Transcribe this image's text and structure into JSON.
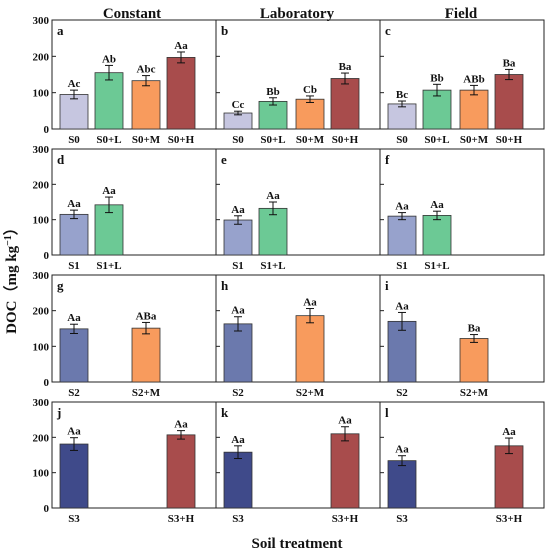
{
  "figure": {
    "ylabel": "DOC（mg kg",
    "ylabel_sup": "−1",
    "ylabel_end": "）",
    "xlabel": "Soil treatment",
    "columns": [
      "Constant",
      "Laboratory",
      "Field"
    ]
  },
  "colors": {
    "S0": "#c6c6e0",
    "S1": "#97a2cc",
    "S2": "#6b79ad",
    "S3": "#3f4a8a",
    "L": "#6cc995",
    "M": "#f89b5d",
    "H": "#a84c4c",
    "axis": "#222222"
  },
  "chart_data": [
    {
      "type": "bar",
      "panel": "a",
      "ylim": [
        0,
        300
      ],
      "yticks": [
        0,
        100,
        200,
        300
      ],
      "categories": [
        "S0",
        "S0+L",
        "S0+M",
        "S0+H"
      ],
      "colors": [
        "S0",
        "L",
        "M",
        "H"
      ],
      "values": [
        95,
        155,
        133,
        197
      ],
      "errors": [
        12,
        20,
        14,
        15
      ],
      "labels": [
        "Ac",
        "Ab",
        "Abc",
        "Aa"
      ]
    },
    {
      "type": "bar",
      "panel": "b",
      "ylim": [
        0,
        300
      ],
      "yticks": [
        0,
        100,
        200,
        300
      ],
      "categories": [
        "S0",
        "S0+L",
        "S0+M",
        "S0+H"
      ],
      "colors": [
        "S0",
        "L",
        "M",
        "H"
      ],
      "values": [
        44,
        76,
        82,
        139
      ],
      "errors": [
        5,
        10,
        9,
        15
      ],
      "labels": [
        "Cc",
        "Bb",
        "Cb",
        "Ba"
      ]
    },
    {
      "type": "bar",
      "panel": "c",
      "ylim": [
        0,
        300
      ],
      "yticks": [
        0,
        100,
        200,
        300
      ],
      "categories": [
        "S0",
        "S0+L",
        "S0+M",
        "S0+H"
      ],
      "colors": [
        "S0",
        "L",
        "M",
        "H"
      ],
      "values": [
        69,
        107,
        107,
        150
      ],
      "errors": [
        8,
        16,
        13,
        14
      ],
      "labels": [
        "Bc",
        "Bb",
        "ABb",
        "Ba"
      ]
    },
    {
      "type": "bar",
      "panel": "d",
      "ylim": [
        0,
        300
      ],
      "yticks": [
        0,
        100,
        200,
        300
      ],
      "categories": [
        "S1",
        "S1+L",
        "",
        ""
      ],
      "colors": [
        "S1",
        "L",
        "",
        ""
      ],
      "values": [
        115,
        142,
        null,
        null
      ],
      "errors": [
        12,
        22,
        null,
        null
      ],
      "labels": [
        "Aa",
        "Aa",
        "",
        ""
      ]
    },
    {
      "type": "bar",
      "panel": "e",
      "ylim": [
        0,
        300
      ],
      "yticks": [
        0,
        100,
        200,
        300
      ],
      "categories": [
        "S1",
        "S1+L",
        "",
        ""
      ],
      "colors": [
        "S1",
        "L",
        "",
        ""
      ],
      "values": [
        99,
        132,
        null,
        null
      ],
      "errors": [
        12,
        18,
        null,
        null
      ],
      "labels": [
        "Aa",
        "Aa",
        "",
        ""
      ]
    },
    {
      "type": "bar",
      "panel": "f",
      "ylim": [
        0,
        300
      ],
      "yticks": [
        0,
        100,
        200,
        300
      ],
      "categories": [
        "S1",
        "S1+L",
        "",
        ""
      ],
      "colors": [
        "S1",
        "L",
        "",
        ""
      ],
      "values": [
        110,
        112,
        null,
        null
      ],
      "errors": [
        10,
        12,
        null,
        null
      ],
      "labels": [
        "Aa",
        "Aa",
        "",
        ""
      ]
    },
    {
      "type": "bar",
      "panel": "g",
      "ylim": [
        0,
        300
      ],
      "yticks": [
        0,
        100,
        200,
        300
      ],
      "categories": [
        "S2",
        "",
        "S2+M",
        ""
      ],
      "colors": [
        "S2",
        "",
        "M",
        ""
      ],
      "values": [
        149,
        null,
        151,
        null
      ],
      "errors": [
        13,
        null,
        16,
        null
      ],
      "labels": [
        "Aa",
        "",
        "ABa",
        ""
      ]
    },
    {
      "type": "bar",
      "panel": "h",
      "ylim": [
        0,
        300
      ],
      "yticks": [
        0,
        100,
        200,
        300
      ],
      "categories": [
        "S2",
        "",
        "S2+M",
        ""
      ],
      "colors": [
        "S2",
        "",
        "M",
        ""
      ],
      "values": [
        163,
        null,
        186,
        null
      ],
      "errors": [
        20,
        null,
        20,
        null
      ],
      "labels": [
        "Aa",
        "",
        "Aa",
        ""
      ]
    },
    {
      "type": "bar",
      "panel": "i",
      "ylim": [
        0,
        300
      ],
      "yticks": [
        0,
        100,
        200,
        300
      ],
      "categories": [
        "S2",
        "",
        "S2+M",
        ""
      ],
      "colors": [
        "S2",
        "",
        "M",
        ""
      ],
      "values": [
        170,
        null,
        122,
        null
      ],
      "errors": [
        25,
        null,
        11,
        null
      ],
      "labels": [
        "Aa",
        "",
        "Ba",
        ""
      ]
    },
    {
      "type": "bar",
      "panel": "j",
      "ylim": [
        0,
        300
      ],
      "yticks": [
        0,
        100,
        200,
        300
      ],
      "categories": [
        "S3",
        "",
        "",
        "S3+H"
      ],
      "colors": [
        "S3",
        "",
        "",
        "H"
      ],
      "values": [
        181,
        null,
        null,
        207
      ],
      "errors": [
        18,
        null,
        null,
        12
      ],
      "labels": [
        "Aa",
        "",
        "",
        "Aa"
      ]
    },
    {
      "type": "bar",
      "panel": "k",
      "ylim": [
        0,
        300
      ],
      "yticks": [
        0,
        100,
        200,
        300
      ],
      "categories": [
        "S3",
        "",
        "",
        "S3+H"
      ],
      "colors": [
        "S3",
        "",
        "",
        "H"
      ],
      "values": [
        158,
        null,
        null,
        210
      ],
      "errors": [
        18,
        null,
        null,
        20
      ],
      "labels": [
        "Aa",
        "",
        "",
        "Aa"
      ]
    },
    {
      "type": "bar",
      "panel": "l",
      "ylim": [
        0,
        300
      ],
      "yticks": [
        0,
        100,
        200,
        300
      ],
      "categories": [
        "S3",
        "",
        "",
        "S3+H"
      ],
      "colors": [
        "S3",
        "",
        "",
        "H"
      ],
      "values": [
        134,
        null,
        null,
        176
      ],
      "errors": [
        14,
        null,
        null,
        22
      ],
      "labels": [
        "Aa",
        "",
        "",
        "Aa"
      ]
    }
  ]
}
